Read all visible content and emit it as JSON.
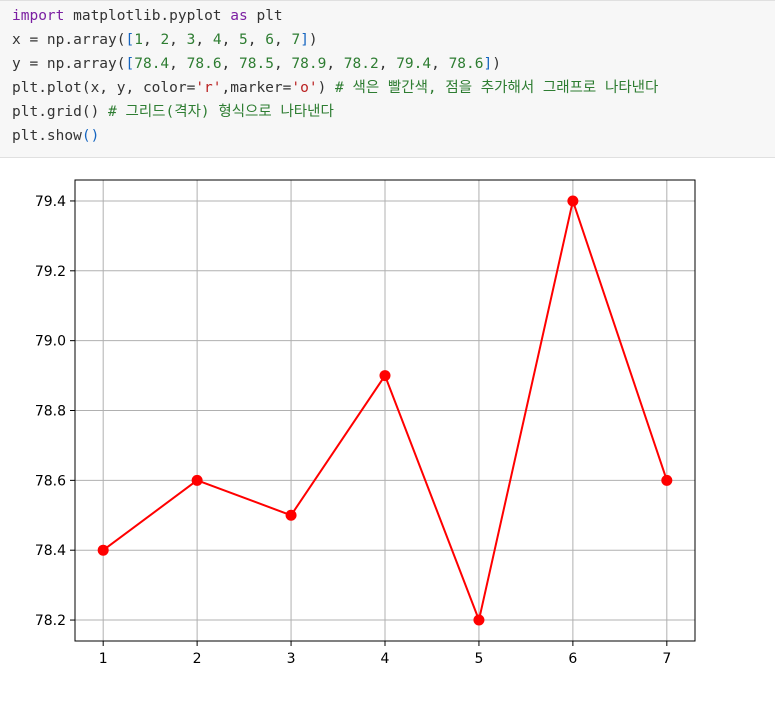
{
  "code_cell": {
    "lines": [
      [
        {
          "t": "import",
          "c": "kw"
        },
        {
          "t": " matplotlib.pyplot ",
          "c": ""
        },
        {
          "t": "as",
          "c": "kw"
        },
        {
          "t": " plt",
          "c": ""
        }
      ],
      [
        {
          "t": "x = np.array(",
          "c": ""
        },
        {
          "t": "[",
          "c": "br"
        },
        {
          "t": "1",
          "c": "num"
        },
        {
          "t": ", ",
          "c": ""
        },
        {
          "t": "2",
          "c": "num"
        },
        {
          "t": ", ",
          "c": ""
        },
        {
          "t": "3",
          "c": "num"
        },
        {
          "t": ", ",
          "c": ""
        },
        {
          "t": "4",
          "c": "num"
        },
        {
          "t": ", ",
          "c": ""
        },
        {
          "t": "5",
          "c": "num"
        },
        {
          "t": ", ",
          "c": ""
        },
        {
          "t": "6",
          "c": "num"
        },
        {
          "t": ", ",
          "c": ""
        },
        {
          "t": "7",
          "c": "num"
        },
        {
          "t": "]",
          "c": "br"
        },
        {
          "t": ")",
          "c": ""
        }
      ],
      [
        {
          "t": "y = np.array(",
          "c": ""
        },
        {
          "t": "[",
          "c": "br"
        },
        {
          "t": "78.4",
          "c": "num"
        },
        {
          "t": ", ",
          "c": ""
        },
        {
          "t": "78.6",
          "c": "num"
        },
        {
          "t": ", ",
          "c": ""
        },
        {
          "t": "78.5",
          "c": "num"
        },
        {
          "t": ", ",
          "c": ""
        },
        {
          "t": "78.9",
          "c": "num"
        },
        {
          "t": ", ",
          "c": ""
        },
        {
          "t": "78.2",
          "c": "num"
        },
        {
          "t": ", ",
          "c": ""
        },
        {
          "t": "79.4",
          "c": "num"
        },
        {
          "t": ", ",
          "c": ""
        },
        {
          "t": "78.6",
          "c": "num"
        },
        {
          "t": "]",
          "c": "br"
        },
        {
          "t": ")",
          "c": ""
        }
      ],
      [
        {
          "t": "plt.plot(x, y, color=",
          "c": ""
        },
        {
          "t": "'r'",
          "c": "str"
        },
        {
          "t": ",marker=",
          "c": ""
        },
        {
          "t": "'o'",
          "c": "str"
        },
        {
          "t": ") ",
          "c": ""
        },
        {
          "t": "# 색은 빨간색, 점을 추가해서 그래프로 나타낸다",
          "c": "cm"
        }
      ],
      [
        {
          "t": "plt.grid() ",
          "c": ""
        },
        {
          "t": "# 그리드(격자) 형식으로 나타낸다",
          "c": "cm"
        }
      ],
      [
        {
          "t": "plt.show",
          "c": ""
        },
        {
          "t": "()",
          "c": "br"
        }
      ]
    ]
  },
  "chart_data": {
    "type": "line",
    "x": [
      1,
      2,
      3,
      4,
      5,
      6,
      7
    ],
    "series": [
      {
        "values": [
          78.4,
          78.6,
          78.5,
          78.9,
          78.2,
          79.4,
          78.6
        ],
        "color": "#ff0000",
        "marker": "o"
      }
    ],
    "xticks": [
      1,
      2,
      3,
      4,
      5,
      6,
      7
    ],
    "xtick_labels": [
      "1",
      "2",
      "3",
      "4",
      "5",
      "6",
      "7"
    ],
    "yticks": [
      78.2,
      78.4,
      78.6,
      78.8,
      79.0,
      79.2,
      79.4
    ],
    "ytick_labels": [
      "78.2",
      "78.4",
      "78.6",
      "78.8",
      "79.0",
      "79.2",
      "79.4"
    ],
    "xlim": [
      0.7,
      7.3
    ],
    "ylim": [
      78.14,
      79.46
    ],
    "grid": true,
    "title": "",
    "xlabel": "",
    "ylabel": ""
  }
}
